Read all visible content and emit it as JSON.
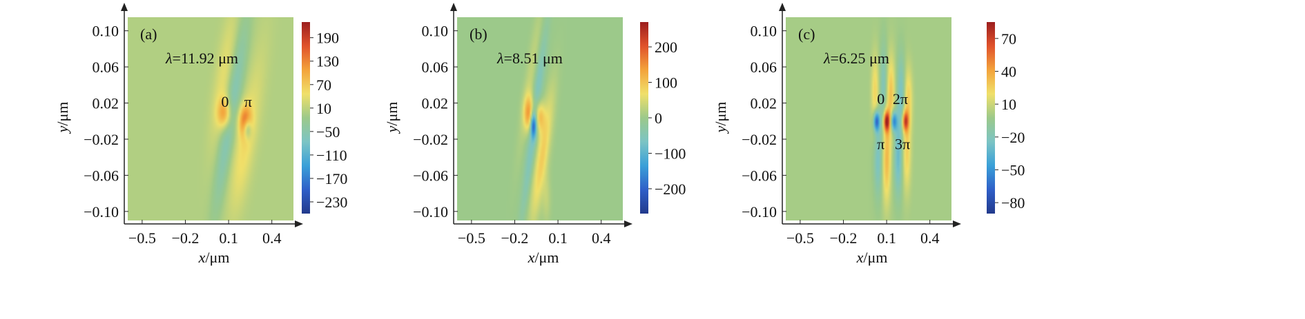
{
  "colors": {
    "background_field": "#8fbd7a",
    "axis": "#222222",
    "colormap": [
      "#223a8c",
      "#2f5fc8",
      "#3aa0d8",
      "#7cc4c4",
      "#9cc98a",
      "#f0e06a",
      "#f3a33b",
      "#e0522b",
      "#9c1e1e"
    ]
  },
  "chart_data": [
    {
      "type": "heatmap",
      "panel_label": "(a)",
      "annotation": {
        "symbol": "λ",
        "text": "=11.92 μm"
      },
      "xlabel": {
        "var": "x",
        "unit": "/μm"
      },
      "ylabel": {
        "var": "y",
        "unit": "/μm"
      },
      "xlim": [
        -0.6,
        0.55
      ],
      "ylim": [
        -0.11,
        0.115
      ],
      "x_ticks": [
        -0.5,
        -0.2,
        0.1,
        0.4
      ],
      "x_tick_labels": [
        "−0.5",
        "−0.2",
        "0.1",
        "0.4"
      ],
      "y_ticks": [
        0.1,
        0.06,
        0.02,
        -0.02,
        -0.06,
        -0.1
      ],
      "y_tick_labels": [
        "0.10",
        "0.06",
        "0.02",
        "−0.02",
        "−0.06",
        "−0.10"
      ],
      "colorbar": {
        "range": [
          -260,
          230
        ],
        "ticks": [
          190,
          130,
          70,
          10,
          -50,
          -110,
          -170,
          -230
        ],
        "tick_labels": [
          "190",
          "130",
          "70",
          "10",
          "−50",
          "−110",
          "−170",
          "−230"
        ]
      },
      "phase_labels": [
        {
          "text": "0",
          "x": 0.075,
          "y": 0.022
        },
        {
          "text": "π",
          "x": 0.235,
          "y": 0.022
        }
      ],
      "features": [
        {
          "x": 0.07,
          "y": 0.05,
          "sx": 0.045,
          "sy": 0.055,
          "tilt": 0.9,
          "v": 40
        },
        {
          "x": 0.075,
          "y": 0.008,
          "sx": 0.035,
          "sy": 0.012,
          "tilt": 0,
          "v": 110
        },
        {
          "x": 0.07,
          "y": -0.035,
          "sx": 0.035,
          "sy": 0.055,
          "tilt": 0.9,
          "v": -45
        },
        {
          "x": 0.16,
          "y": 0.05,
          "sx": 0.04,
          "sy": 0.055,
          "tilt": 0.9,
          "v": -45
        },
        {
          "x": 0.2,
          "y": -0.035,
          "sx": 0.05,
          "sy": 0.05,
          "tilt": 0.9,
          "v": 45
        },
        {
          "x": 0.215,
          "y": 0.0,
          "sx": 0.03,
          "sy": 0.012,
          "tilt": 0,
          "v": 130
        },
        {
          "x": 0.23,
          "y": -0.008,
          "sx": 0.02,
          "sy": 0.008,
          "tilt": 0,
          "v": -120
        },
        {
          "x": 0.3,
          "y": 0.04,
          "sx": 0.05,
          "sy": 0.06,
          "tilt": 0.9,
          "v": 15
        }
      ]
    },
    {
      "type": "heatmap",
      "panel_label": "(b)",
      "annotation": {
        "symbol": "λ",
        "text": "=8.51 μm"
      },
      "xlabel": {
        "var": "x",
        "unit": "/μm"
      },
      "ylabel": {
        "var": "y",
        "unit": "/μm"
      },
      "xlim": [
        -0.6,
        0.55
      ],
      "ylim": [
        -0.11,
        0.115
      ],
      "x_ticks": [
        -0.5,
        -0.2,
        0.1,
        0.4
      ],
      "x_tick_labels": [
        "−0.5",
        "−0.2",
        "0.1",
        "0.4"
      ],
      "y_ticks": [
        0.1,
        0.06,
        0.02,
        -0.02,
        -0.06,
        -0.1
      ],
      "y_tick_labels": [
        "0.10",
        "0.06",
        "0.02",
        "−0.02",
        "−0.06",
        "−0.10"
      ],
      "colorbar": {
        "range": [
          -270,
          270
        ],
        "ticks": [
          200,
          100,
          0,
          -100,
          -200
        ],
        "tick_labels": [
          "200",
          "100",
          "0",
          "−100",
          "−200"
        ]
      },
      "phase_labels": [],
      "features": [
        {
          "x": -0.09,
          "y": 0.05,
          "sx": 0.025,
          "sy": 0.06,
          "tilt": 0.9,
          "v": 30
        },
        {
          "x": -0.04,
          "y": 0.04,
          "sx": 0.02,
          "sy": 0.05,
          "tilt": 0.9,
          "v": -50
        },
        {
          "x": -0.1,
          "y": 0.008,
          "sx": 0.025,
          "sy": 0.014,
          "tilt": 0,
          "v": 140
        },
        {
          "x": -0.03,
          "y": 0.006,
          "sx": 0.025,
          "sy": 0.012,
          "tilt": 0,
          "v": 110
        },
        {
          "x": -0.07,
          "y": -0.004,
          "sx": 0.015,
          "sy": 0.01,
          "tilt": 0,
          "v": -190
        },
        {
          "x": -0.09,
          "y": -0.04,
          "sx": 0.02,
          "sy": 0.055,
          "tilt": 0.9,
          "v": -50
        },
        {
          "x": -0.01,
          "y": -0.04,
          "sx": 0.03,
          "sy": 0.05,
          "tilt": 0.9,
          "v": 90
        },
        {
          "x": 0.02,
          "y": -0.085,
          "sx": 0.02,
          "sy": 0.02,
          "tilt": 0,
          "v": 30
        }
      ]
    },
    {
      "type": "heatmap",
      "panel_label": "(c)",
      "annotation": {
        "symbol": "λ",
        "text": "=6.25 μm"
      },
      "xlabel": {
        "var": "x",
        "unit": "/μm"
      },
      "ylabel": {
        "var": "y",
        "unit": "/μm"
      },
      "xlim": [
        -0.6,
        0.55
      ],
      "ylim": [
        -0.11,
        0.115
      ],
      "x_ticks": [
        -0.5,
        -0.2,
        0.1,
        0.4
      ],
      "x_tick_labels": [
        "−0.5",
        "−0.2",
        "0.1",
        "0.4"
      ],
      "y_ticks": [
        0.1,
        0.06,
        0.02,
        -0.02,
        -0.06,
        -0.1
      ],
      "y_tick_labels": [
        "0.10",
        "0.06",
        "0.02",
        "−0.02",
        "−0.06",
        "−0.10"
      ],
      "colorbar": {
        "range": [
          -90,
          85
        ],
        "ticks": [
          70,
          40,
          10,
          -20,
          -50,
          -80
        ],
        "tick_labels": [
          "70",
          "40",
          "10",
          "−20",
          "−50",
          "−80"
        ]
      },
      "phase_labels": [
        {
          "text": "0",
          "x": 0.06,
          "y": 0.025
        },
        {
          "text": "2π",
          "x": 0.195,
          "y": 0.025
        },
        {
          "text": "π",
          "x": 0.06,
          "y": -0.025
        },
        {
          "text": "3π",
          "x": 0.21,
          "y": -0.025
        }
      ],
      "features": [
        {
          "x": 0.02,
          "y": 0.03,
          "sx": 0.018,
          "sy": 0.03,
          "tilt": 0,
          "v": 25
        },
        {
          "x": 0.08,
          "y": 0.035,
          "sx": 0.018,
          "sy": 0.035,
          "tilt": 0,
          "v": -22
        },
        {
          "x": 0.13,
          "y": 0.03,
          "sx": 0.02,
          "sy": 0.03,
          "tilt": 0,
          "v": 30
        },
        {
          "x": 0.2,
          "y": 0.03,
          "sx": 0.02,
          "sy": 0.03,
          "tilt": 0,
          "v": -25
        },
        {
          "x": 0.25,
          "y": 0.025,
          "sx": 0.02,
          "sy": 0.025,
          "tilt": 0,
          "v": 25
        },
        {
          "x": 0.03,
          "y": 0.0,
          "sx": 0.015,
          "sy": 0.008,
          "tilt": 0,
          "v": -70
        },
        {
          "x": 0.1,
          "y": 0.0,
          "sx": 0.015,
          "sy": 0.008,
          "tilt": 0,
          "v": 75
        },
        {
          "x": 0.15,
          "y": 0.0,
          "sx": 0.015,
          "sy": 0.008,
          "tilt": 0,
          "v": -60
        },
        {
          "x": 0.23,
          "y": 0.0,
          "sx": 0.015,
          "sy": 0.008,
          "tilt": 0,
          "v": 60
        },
        {
          "x": 0.04,
          "y": -0.04,
          "sx": 0.02,
          "sy": 0.03,
          "tilt": 0,
          "v": -25
        },
        {
          "x": 0.1,
          "y": -0.04,
          "sx": 0.02,
          "sy": 0.035,
          "tilt": 0,
          "v": 35
        },
        {
          "x": 0.18,
          "y": -0.04,
          "sx": 0.02,
          "sy": 0.03,
          "tilt": 0,
          "v": -30
        },
        {
          "x": 0.24,
          "y": -0.035,
          "sx": 0.02,
          "sy": 0.03,
          "tilt": 0,
          "v": 25
        }
      ]
    }
  ]
}
